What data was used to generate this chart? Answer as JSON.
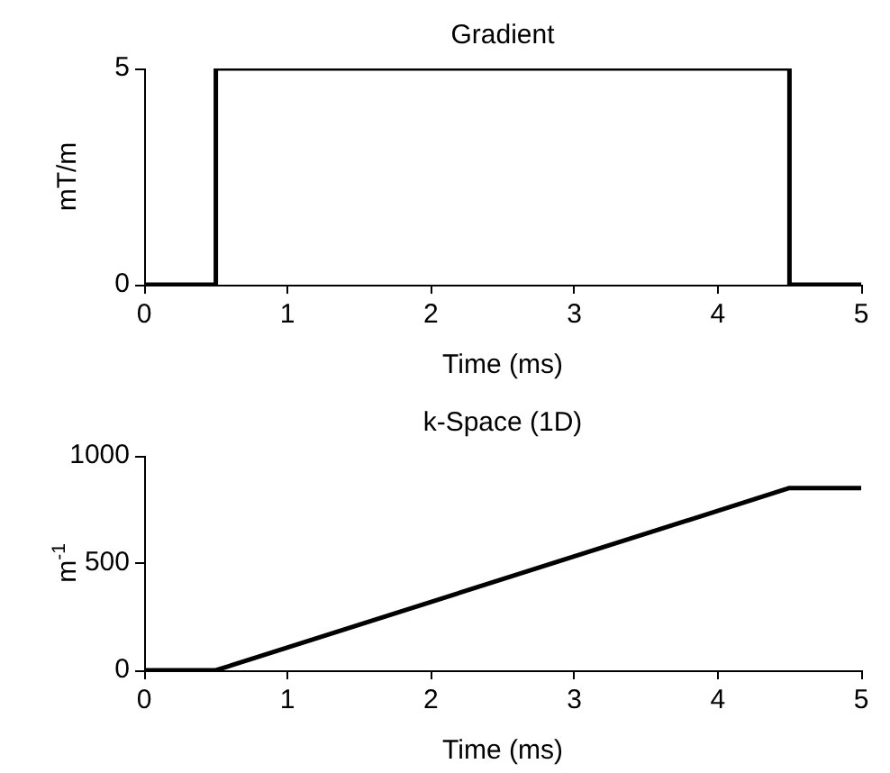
{
  "chart_data": [
    {
      "type": "line",
      "title": "Gradient",
      "xlabel": "Time (ms)",
      "ylabel": "mT/m",
      "x": [
        0,
        0.5,
        0.5,
        4.5,
        4.5,
        5
      ],
      "series": [
        {
          "color": "#000000",
          "values": [
            0,
            0,
            5,
            5,
            0,
            0
          ]
        }
      ],
      "xlim": [
        0,
        5
      ],
      "xticks": [
        0,
        1,
        2,
        3,
        4,
        5
      ],
      "ylim": [
        0,
        5
      ],
      "yticks": [
        0,
        5
      ],
      "grid": false,
      "legend": false,
      "marker": "none",
      "line_style": "solid"
    },
    {
      "type": "line",
      "title": "k-Space (1D)",
      "xlabel": "Time (ms)",
      "ylabel": "m$^{-1}$",
      "x": [
        0,
        0.5,
        4.5,
        5
      ],
      "series": [
        {
          "color": "#000000",
          "values": [
            0,
            0,
            850,
            850
          ]
        }
      ],
      "xlim": [
        0,
        5
      ],
      "xticks": [
        0,
        1,
        2,
        3,
        4,
        5
      ],
      "ylim": [
        0,
        1000
      ],
      "yticks": [
        0,
        500,
        1000
      ],
      "grid": false,
      "legend": false,
      "marker": "none",
      "line_style": "solid"
    }
  ]
}
